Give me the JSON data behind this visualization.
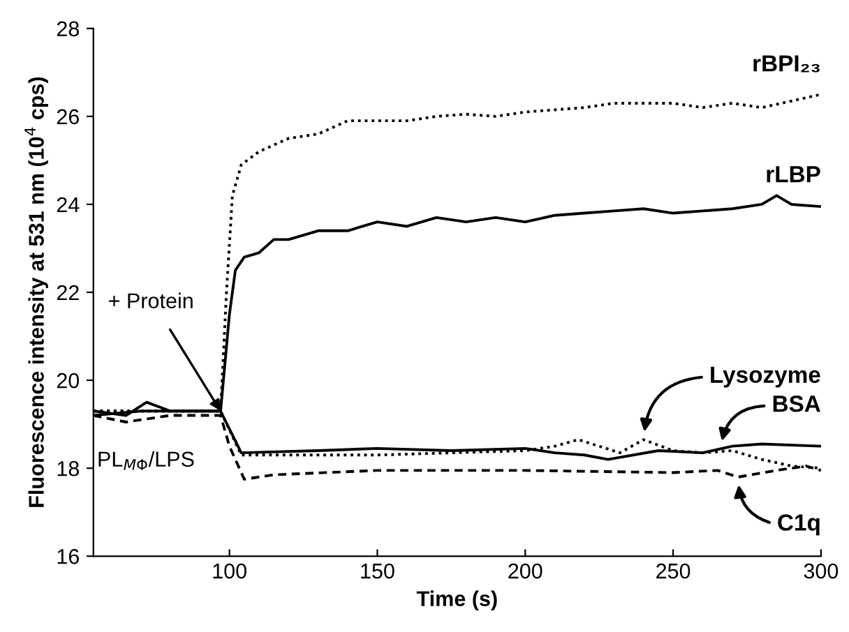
{
  "chart_data": {
    "type": "line",
    "xlabel": "Time (s)",
    "ylabel": "Fluorescence intensity at 531 nm (10$^{4}$ cps)",
    "xlim": [
      54,
      300
    ],
    "ylim": [
      16,
      28
    ],
    "xticks": [
      100,
      150,
      200,
      250,
      300
    ],
    "yticks": [
      16,
      18,
      20,
      22,
      24,
      26,
      28
    ],
    "grid": false,
    "legend": false,
    "annotations": [
      {
        "text": "+ Protein",
        "x": 97,
        "y": 19.3
      },
      "PL$_{MΦ}$/LPS"
    ],
    "series": [
      {
        "name": "rBPI₂₃",
        "color": "#000000",
        "line_style": "dotted",
        "x": [
          54,
          97,
          99,
          101,
          104,
          110,
          120,
          130,
          140,
          160,
          170,
          180,
          190,
          200,
          220,
          230,
          250,
          260,
          270,
          280,
          290,
          300
        ],
        "values": [
          19.3,
          19.3,
          22,
          24.2,
          24.9,
          25.2,
          25.5,
          25.6,
          25.9,
          25.9,
          26.0,
          26.05,
          26.0,
          26.1,
          26.2,
          26.3,
          26.3,
          26.2,
          26.3,
          26.2,
          26.35,
          26.5
        ]
      },
      {
        "name": "rLBP",
        "color": "#000000",
        "line_style": "solid",
        "x": [
          54,
          70,
          97,
          100,
          102,
          105,
          110,
          115,
          120,
          130,
          140,
          145,
          150,
          160,
          170,
          180,
          190,
          200,
          210,
          220,
          230,
          240,
          250,
          260,
          270,
          280,
          285,
          290,
          300
        ],
        "values": [
          19.2,
          19.3,
          19.3,
          21.5,
          22.5,
          22.8,
          22.9,
          23.2,
          23.2,
          23.4,
          23.4,
          23.5,
          23.6,
          23.5,
          23.7,
          23.6,
          23.7,
          23.6,
          23.75,
          23.8,
          23.85,
          23.9,
          23.8,
          23.85,
          23.9,
          24.0,
          24.2,
          24.0,
          23.95
        ]
      },
      {
        "name": "Lysozyme",
        "color": "#000000",
        "line_style": "dotted",
        "x": [
          54,
          97,
          104,
          150,
          200,
          210,
          218,
          225,
          232,
          240,
          250,
          260,
          270,
          280,
          290,
          300
        ],
        "values": [
          19.3,
          19.3,
          18.3,
          18.3,
          18.4,
          18.5,
          18.65,
          18.5,
          18.35,
          18.65,
          18.4,
          18.35,
          18.4,
          18.2,
          18.05,
          18.0
        ]
      },
      {
        "name": "BSA",
        "color": "#000000",
        "line_style": "solid",
        "x": [
          54,
          65,
          72,
          80,
          97,
          104,
          130,
          150,
          175,
          200,
          210,
          220,
          228,
          245,
          260,
          270,
          280,
          300
        ],
        "values": [
          19.3,
          19.2,
          19.5,
          19.3,
          19.3,
          18.35,
          18.4,
          18.45,
          18.4,
          18.45,
          18.35,
          18.3,
          18.2,
          18.4,
          18.35,
          18.5,
          18.55,
          18.5
        ]
      },
      {
        "name": "C1q",
        "color": "#000000",
        "line_style": "dashed",
        "x": [
          54,
          65,
          80,
          97,
          100,
          105,
          115,
          150,
          200,
          250,
          265,
          272,
          285,
          295,
          300
        ],
        "values": [
          19.2,
          19.05,
          19.2,
          19.2,
          18.5,
          17.75,
          17.85,
          17.95,
          17.95,
          17.9,
          17.95,
          17.8,
          17.95,
          18.05,
          17.95
        ]
      }
    ]
  }
}
